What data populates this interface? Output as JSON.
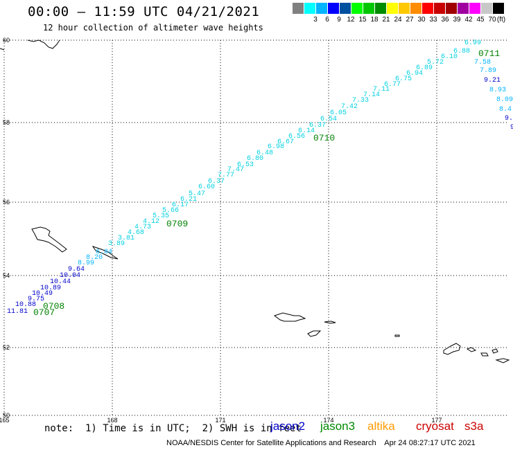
{
  "header": {
    "title": "00:00 – 11:59 UTC 04/21/2021",
    "subtitle": "12 hour collection of altimeter wave heights"
  },
  "legend": {
    "unit": "(ft)",
    "items": [
      {
        "color": "#808080",
        "label": ""
      },
      {
        "color": "#00ffff",
        "label": "3"
      },
      {
        "color": "#00b4ff",
        "label": "6"
      },
      {
        "color": "#0000ff",
        "label": "9"
      },
      {
        "color": "#0050a0",
        "label": "12"
      },
      {
        "color": "#00ff00",
        "label": "15"
      },
      {
        "color": "#00c800",
        "label": "18"
      },
      {
        "color": "#008c00",
        "label": "21"
      },
      {
        "color": "#ffff00",
        "label": "24"
      },
      {
        "color": "#ffc800",
        "label": "27"
      },
      {
        "color": "#ff8c00",
        "label": "30"
      },
      {
        "color": "#ff0000",
        "label": "33"
      },
      {
        "color": "#c80000",
        "label": "36"
      },
      {
        "color": "#a00000",
        "label": "39"
      },
      {
        "color": "#a000a0",
        "label": "42"
      },
      {
        "color": "#ff00ff",
        "label": "45"
      },
      {
        "color": "#c8c8c8",
        "label": "70"
      },
      {
        "color": "#000000",
        "label": ""
      }
    ]
  },
  "axes": {
    "lon_labels": [
      "165",
      "168",
      "171",
      "174",
      "177"
    ],
    "lat_labels": [
      "50",
      "52",
      "54",
      "56",
      "58",
      "60"
    ]
  },
  "track": {
    "points": [
      {
        "v": "11.81",
        "c": "#0000cc"
      },
      {
        "v": "10.88",
        "c": "#0000cc"
      },
      {
        "v": "9.75",
        "c": "#0000cc"
      },
      {
        "v": "10.49",
        "c": "#0000cc"
      },
      {
        "v": "10.89",
        "c": "#0000cc"
      },
      {
        "v": "10.44",
        "c": "#0000cc"
      },
      {
        "v": "10.04",
        "c": "#0000cc"
      },
      {
        "v": "9.64",
        "c": "#0000cc"
      },
      {
        "v": "8.99",
        "c": "#00b4ff"
      },
      {
        "v": "8.20",
        "c": "#00b4ff"
      },
      {
        "v": "6.84",
        "c": "#00b4ff"
      },
      {
        "v": "3.89",
        "c": "#00d0e0"
      },
      {
        "v": "3.81",
        "c": "#00d0e0"
      },
      {
        "v": "4.68",
        "c": "#00d0e0"
      },
      {
        "v": "4.73",
        "c": "#00d0e0"
      },
      {
        "v": "4.12",
        "c": "#00d0e0"
      },
      {
        "v": "5.35",
        "c": "#00d0e0"
      },
      {
        "v": "5.66",
        "c": "#00d0e0"
      },
      {
        "v": "6.17",
        "c": "#00d0e0"
      },
      {
        "v": "6.21",
        "c": "#00d0e0"
      },
      {
        "v": "5.47",
        "c": "#00d0e0"
      },
      {
        "v": "6.60",
        "c": "#00d0e0"
      },
      {
        "v": "6.37",
        "c": "#00d0e0"
      },
      {
        "v": "7.77",
        "c": "#00d0e0"
      },
      {
        "v": "7.47",
        "c": "#00d0e0"
      },
      {
        "v": "6.53",
        "c": "#00d0e0"
      },
      {
        "v": "6.80",
        "c": "#00d0e0"
      },
      {
        "v": "6.48",
        "c": "#00d0e0"
      },
      {
        "v": "6.98",
        "c": "#00d0e0"
      },
      {
        "v": "6.67",
        "c": "#00d0e0"
      },
      {
        "v": "6.56",
        "c": "#00d0e0"
      },
      {
        "v": "6.14",
        "c": "#00d0e0"
      },
      {
        "v": "6.37",
        "c": "#00d0e0"
      },
      {
        "v": "6.54",
        "c": "#00d0e0"
      },
      {
        "v": "6.05",
        "c": "#00d0e0"
      },
      {
        "v": "7.42",
        "c": "#00d0e0"
      },
      {
        "v": "7.33",
        "c": "#00d0e0"
      },
      {
        "v": "7.14",
        "c": "#00d0e0"
      },
      {
        "v": "7.11",
        "c": "#00d0e0"
      },
      {
        "v": "6.77",
        "c": "#00d0e0"
      },
      {
        "v": "6.75",
        "c": "#00d0e0"
      },
      {
        "v": "6.94",
        "c": "#00d0e0"
      },
      {
        "v": "6.89",
        "c": "#00d0e0"
      },
      {
        "v": "5.72",
        "c": "#00d0e0"
      },
      {
        "v": "6.10",
        "c": "#00d0e0"
      },
      {
        "v": "6.88",
        "c": "#00d0e0"
      },
      {
        "v": "6.99",
        "c": "#00d0e0"
      },
      {
        "v": "7.58",
        "c": "#00b4ff"
      },
      {
        "v": "7.89",
        "c": "#00b4ff"
      },
      {
        "v": "9.21",
        "c": "#0000cc"
      },
      {
        "v": "8.93",
        "c": "#00b4ff"
      },
      {
        "v": "8.09",
        "c": "#00b4ff"
      },
      {
        "v": "8.4",
        "c": "#00b4ff"
      },
      {
        "v": "9.",
        "c": "#0000cc"
      },
      {
        "v": "9",
        "c": "#0000cc"
      }
    ],
    "time_labels": [
      "0707",
      "0708",
      "0709",
      "0710",
      "0711"
    ],
    "time_color": "#008000"
  },
  "footer": {
    "note": "note:  1) Time is in UTC;  2) SWH is in feet",
    "satellites": [
      {
        "name": "jason2",
        "color": "#0000cc"
      },
      {
        "name": "jason3",
        "color": "#008800"
      },
      {
        "name": "altika",
        "color": "#ff9900"
      },
      {
        "name": "cryosat",
        "color": "#cc0000"
      },
      {
        "name": "s3a",
        "color": "#cc0000"
      }
    ],
    "credit": "NOAA/NESDIS Center for Satellite Applications and Research    Apr 24 08:27:17 UTC 2021"
  }
}
